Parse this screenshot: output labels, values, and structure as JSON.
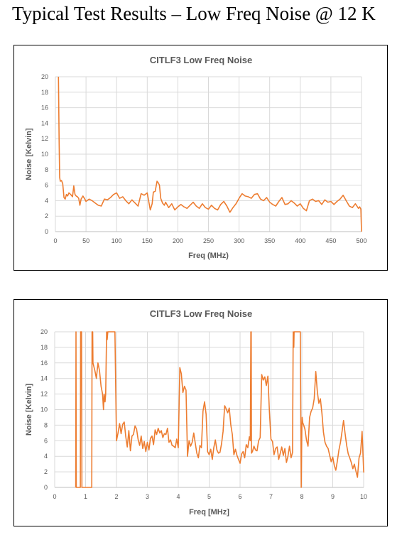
{
  "page": {
    "title": "Typical Test Results – Low Freq Noise @ 12 K"
  },
  "chart_data": [
    {
      "type": "line",
      "title": "CITLF3 Low Freq Noise",
      "xlabel": "Freq (MHz)",
      "ylabel": "Noise [Kelvin]",
      "xlim": [
        0,
        500
      ],
      "ylim": [
        0,
        20
      ],
      "xticks": [
        0,
        50,
        100,
        150,
        200,
        250,
        300,
        350,
        400,
        450,
        500
      ],
      "yticks": [
        0,
        2,
        4,
        6,
        8,
        10,
        12,
        14,
        16,
        18,
        20
      ],
      "grid": true,
      "legend": "none",
      "color": "#ED7D31",
      "series": [
        {
          "x": [
            5,
            6,
            7,
            8,
            10,
            12,
            14,
            16,
            18,
            20,
            22,
            25,
            28,
            30,
            32,
            34,
            36,
            38,
            40,
            42,
            45,
            48,
            50,
            55,
            60,
            65,
            70,
            75,
            80,
            85,
            90,
            95,
            100,
            105,
            110,
            115,
            120,
            125,
            130,
            135,
            140,
            145,
            150,
            155,
            158,
            160,
            163,
            166,
            168,
            170,
            172,
            175,
            178,
            180,
            185,
            190,
            195,
            200,
            205,
            210,
            215,
            220,
            225,
            230,
            235,
            240,
            245,
            250,
            255,
            260,
            265,
            270,
            275,
            280,
            285,
            290,
            295,
            300,
            305,
            310,
            315,
            320,
            325,
            330,
            335,
            340,
            345,
            350,
            355,
            360,
            365,
            370,
            375,
            380,
            385,
            390,
            395,
            400,
            405,
            410,
            415,
            420,
            425,
            430,
            435,
            440,
            445,
            450,
            455,
            460,
            465,
            470,
            475,
            480,
            485,
            490,
            495,
            497,
            499,
            500
          ],
          "y": [
            20,
            12,
            7,
            6.5,
            6.6,
            6.2,
            4.4,
            4.2,
            4.8,
            4.6,
            5.0,
            4.8,
            4.5,
            5.9,
            4.8,
            4.6,
            4.5,
            4.3,
            3.4,
            4.2,
            4.6,
            4.2,
            3.9,
            4.2,
            4.0,
            3.7,
            3.4,
            3.3,
            4.2,
            4.1,
            4.4,
            4.8,
            5.0,
            4.3,
            4.5,
            4.0,
            3.6,
            4.1,
            3.7,
            3.3,
            4.9,
            4.7,
            5.0,
            2.8,
            3.6,
            5.1,
            5.2,
            6.5,
            6.3,
            6.0,
            4.3,
            3.7,
            3.4,
            3.8,
            3.1,
            3.6,
            2.8,
            3.2,
            3.5,
            3.2,
            3.0,
            3.4,
            3.8,
            3.3,
            3.0,
            3.6,
            3.1,
            2.9,
            3.4,
            3.0,
            2.8,
            3.5,
            3.9,
            3.3,
            2.5,
            3.1,
            3.6,
            4.3,
            4.9,
            4.6,
            4.5,
            4.3,
            4.8,
            4.9,
            4.2,
            4.0,
            4.4,
            3.8,
            3.5,
            3.3,
            3.9,
            4.4,
            3.5,
            3.6,
            4.0,
            3.7,
            3.3,
            3.6,
            3.0,
            2.7,
            4.0,
            4.2,
            3.9,
            4.0,
            3.5,
            4.1,
            3.8,
            3.9,
            3.5,
            3.9,
            4.2,
            4.7,
            4.0,
            3.3,
            3.1,
            3.6,
            3.0,
            3.2,
            2.9,
            0
          ]
        }
      ]
    },
    {
      "type": "line",
      "title": "CITLF3 Low Freq Noise",
      "xlabel": "Freq [MHz]",
      "ylabel": "Noise [Kelvin]",
      "xlim": [
        0,
        10
      ],
      "ylim": [
        0,
        20
      ],
      "xticks": [
        0,
        1,
        2,
        3,
        4,
        5,
        6,
        7,
        8,
        9,
        10
      ],
      "yticks": [
        0,
        2,
        4,
        6,
        8,
        10,
        12,
        14,
        16,
        18,
        20
      ],
      "grid": true,
      "legend": "none",
      "color": "#ED7D31",
      "series": [
        {
          "x": [
            0.68,
            0.69,
            0.7,
            0.83,
            0.84,
            0.87,
            0.88,
            1.2,
            1.21,
            1.23,
            1.24,
            1.3,
            1.35,
            1.4,
            1.45,
            1.5,
            1.55,
            1.58,
            1.6,
            1.63,
            1.65,
            1.68,
            1.7,
            1.72,
            1.75,
            1.8,
            1.85,
            1.9,
            1.95,
            2.0,
            2.05,
            2.1,
            2.15,
            2.2,
            2.25,
            2.3,
            2.35,
            2.4,
            2.45,
            2.5,
            2.55,
            2.6,
            2.65,
            2.7,
            2.75,
            2.8,
            2.85,
            2.9,
            2.95,
            3.0,
            3.05,
            3.1,
            3.15,
            3.2,
            3.25,
            3.3,
            3.35,
            3.4,
            3.45,
            3.5,
            3.55,
            3.6,
            3.65,
            3.7,
            3.75,
            3.8,
            3.85,
            3.9,
            3.95,
            4.0,
            4.05,
            4.1,
            4.15,
            4.2,
            4.25,
            4.3,
            4.35,
            4.4,
            4.45,
            4.5,
            4.55,
            4.6,
            4.65,
            4.7,
            4.75,
            4.8,
            4.85,
            4.9,
            4.95,
            5.0,
            5.05,
            5.1,
            5.15,
            5.2,
            5.25,
            5.3,
            5.35,
            5.4,
            5.45,
            5.5,
            5.55,
            5.6,
            5.65,
            5.7,
            5.75,
            5.8,
            5.85,
            5.9,
            5.95,
            6.0,
            6.05,
            6.1,
            6.15,
            6.2,
            6.25,
            6.3,
            6.33,
            6.35,
            6.36,
            6.37,
            6.4,
            6.45,
            6.5,
            6.55,
            6.6,
            6.65,
            6.7,
            6.75,
            6.8,
            6.85,
            6.9,
            6.95,
            7.0,
            7.05,
            7.1,
            7.15,
            7.2,
            7.25,
            7.3,
            7.35,
            7.4,
            7.45,
            7.5,
            7.55,
            7.6,
            7.65,
            7.7,
            7.72,
            7.74,
            7.75,
            7.76,
            7.77,
            7.8,
            7.85,
            7.9,
            7.95,
            7.98,
            8.0,
            8.01,
            8.03,
            8.05,
            8.1,
            8.15,
            8.2,
            8.25,
            8.3,
            8.35,
            8.4,
            8.45,
            8.5,
            8.55,
            8.6,
            8.65,
            8.7,
            8.75,
            8.8,
            8.85,
            8.9,
            8.95,
            9.0,
            9.05,
            9.1,
            9.15,
            9.2,
            9.25,
            9.3,
            9.35,
            9.4,
            9.45,
            9.5,
            9.55,
            9.6,
            9.65,
            9.7,
            9.75,
            9.8,
            9.85,
            9.9,
            9.95,
            10.0,
            10.01
          ],
          "y": [
            0,
            20,
            0,
            0,
            20,
            20,
            0,
            0,
            20,
            20,
            16,
            15,
            14,
            16,
            15,
            13,
            12,
            10,
            12,
            11,
            12,
            20,
            19,
            20,
            20,
            20,
            20,
            20,
            20,
            6.0,
            7.0,
            8.2,
            6.9,
            8.1,
            8.4,
            6.5,
            5.2,
            7.3,
            4.7,
            6.6,
            6.8,
            7.9,
            7.5,
            6.2,
            5.4,
            6.6,
            5.0,
            5.9,
            4.6,
            5.8,
            4.8,
            6.3,
            6.6,
            5.5,
            7.4,
            6.8,
            7.6,
            7.0,
            7.3,
            6.4,
            6.9,
            6.8,
            7.6,
            5.8,
            6.1,
            5.4,
            5.3,
            5.1,
            6.2,
            5.1,
            15.4,
            14.6,
            12.2,
            13.0,
            12.5,
            4.0,
            6.0,
            5.3,
            5.8,
            7.0,
            5.7,
            4.4,
            3.8,
            5.4,
            5.1,
            9.8,
            11.0,
            9.4,
            4.6,
            4.2,
            4.9,
            3.6,
            5.1,
            6.1,
            4.8,
            4.4,
            4.5,
            5.6,
            7.2,
            10.5,
            10.1,
            9.6,
            10.2,
            8.0,
            6.8,
            4.2,
            4.9,
            4.1,
            3.6,
            3.1,
            4.3,
            4.6,
            3.8,
            5.5,
            5.1,
            6.5,
            6.0,
            20,
            20,
            4.4,
            4.6,
            5.3,
            4.8,
            4.7,
            6.0,
            6.4,
            14.5,
            13.8,
            14.2,
            13.1,
            14.3,
            9.8,
            6.2,
            5.9,
            4.2,
            5.0,
            5.2,
            3.6,
            4.4,
            5.2,
            4.1,
            5.0,
            3.2,
            4.0,
            5.3,
            3.8,
            4.5,
            20,
            18,
            20,
            20,
            20,
            20,
            20,
            20,
            20,
            0,
            7.5,
            9.0,
            8.3,
            8.1,
            7.5,
            6.1,
            5.3,
            9.0,
            9.8,
            10.2,
            11.4,
            14.9,
            12.3,
            10.8,
            11.4,
            9.5,
            7.1,
            5.8,
            5.3,
            5.0,
            4.1,
            3.3,
            3.9,
            2.8,
            2.2,
            3.4,
            4.8,
            5.8,
            7.2,
            8.6,
            6.9,
            5.4,
            4.3,
            3.8,
            3.2,
            2.4,
            3.0,
            2.1,
            1.3,
            3.8,
            4.4,
            7.2,
            2.1,
            1.9
          ]
        }
      ]
    }
  ]
}
